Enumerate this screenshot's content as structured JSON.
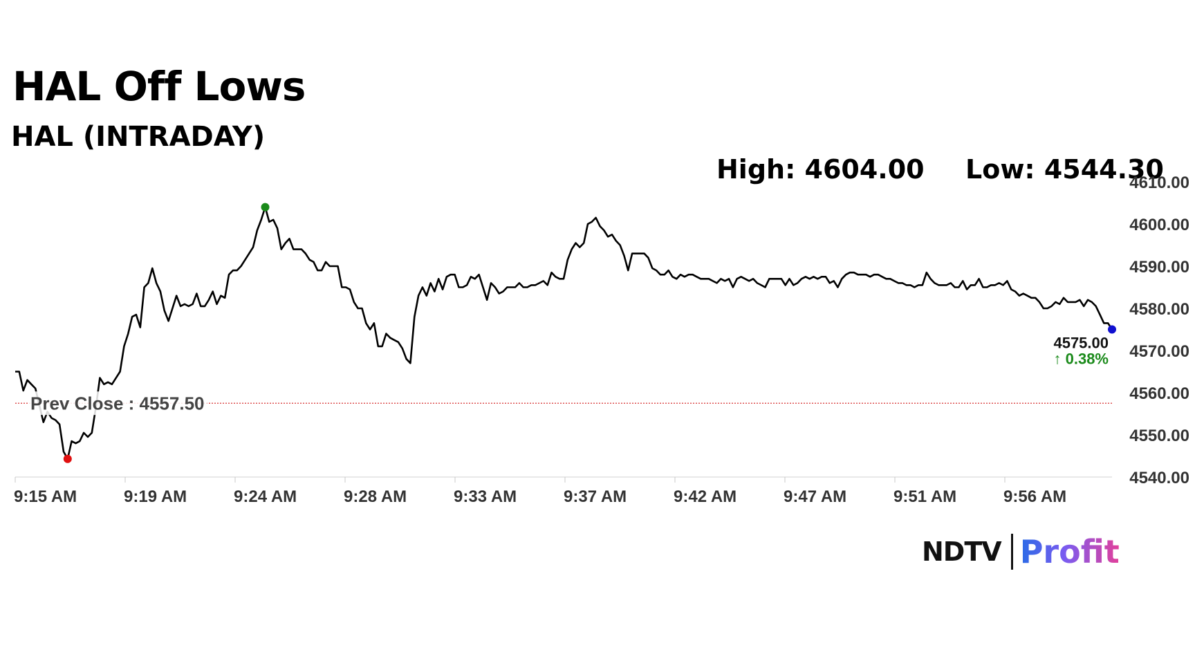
{
  "header": {
    "title": "HAL Off Lows",
    "subtitle": "HAL (INTRADAY)",
    "high_text": "High: 4604.00",
    "low_text": "Low: 4544.30"
  },
  "brand": {
    "ndtv": "NDTV",
    "profit": "Profit"
  },
  "chart_data": {
    "type": "line",
    "title": "HAL Off Lows",
    "subtitle": "HAL (INTRADAY)",
    "x_tick_labels": [
      "9:15 AM",
      "9:19 AM",
      "9:24 AM",
      "9:28 AM",
      "9:33 AM",
      "9:37 AM",
      "9:42 AM",
      "9:47 AM",
      "9:51 AM",
      "9:56 AM"
    ],
    "y_tick_labels": [
      "4540.00",
      "4550.00",
      "4560.00",
      "4570.00",
      "4580.00",
      "4590.00",
      "4600.00",
      "4610.00"
    ],
    "ylim": [
      4540,
      4610
    ],
    "grid": false,
    "prev_close": 4557.5,
    "prev_close_label": "Prev Close : 4557.50",
    "last_value_label": "4575.00",
    "change_label": "↑ 0.38%",
    "colors": {
      "line": "#000000",
      "high_marker": "#1a8a1a",
      "low_marker": "#e01010",
      "last_marker": "#1010d0",
      "prev_close": "#d83030",
      "change": "#1a8a1a"
    },
    "high": 4604.0,
    "low": 4544.3,
    "series": [
      {
        "values": [
          4565.0,
          4565.0,
          4560.5,
          4563.0,
          4562.0,
          4561.0,
          4557.0,
          4553.0,
          4555.5,
          4554.0,
          4553.5,
          4552.5,
          4546.0,
          4544.3,
          4548.5,
          4548.0,
          4548.5,
          4550.5,
          4549.5,
          4550.5,
          4556.5,
          4563.5,
          4562.0,
          4562.5,
          4562.0,
          4563.5,
          4565.0,
          4571.0,
          4574.0,
          4578.0,
          4578.5,
          4575.5,
          4585.0,
          4586.0,
          4589.5,
          4586.0,
          4584.0,
          4579.5,
          4577.0,
          4580.0,
          4583.0,
          4580.5,
          4581.0,
          4580.5,
          4581.0,
          4583.5,
          4580.5,
          4580.5,
          4582.0,
          4584.0,
          4581.0,
          4583.0,
          4582.5,
          4588.0,
          4589.0,
          4589.0,
          4590.0,
          4591.5,
          4593.0,
          4594.5,
          4598.5,
          4601.0,
          4604.0,
          4600.5,
          4601.0,
          4599.0,
          4594.0,
          4595.5,
          4596.5,
          4594.0,
          4594.0,
          4594.0,
          4593.0,
          4591.5,
          4591.0,
          4589.0,
          4589.0,
          4591.0,
          4590.0,
          4590.0,
          4590.0,
          4585.0,
          4585.0,
          4584.5,
          4581.5,
          4580.0,
          4580.0,
          4576.5,
          4575.0,
          4576.5,
          4571.0,
          4571.0,
          4574.0,
          4573.0,
          4572.5,
          4572.0,
          4570.5,
          4568.0,
          4567.0,
          4578.0,
          4583.0,
          4585.0,
          4583.0,
          4586.0,
          4584.0,
          4587.0,
          4584.5,
          4587.5,
          4588.0,
          4588.0,
          4585.0,
          4585.0,
          4585.5,
          4587.5,
          4587.0,
          4588.0,
          4585.0,
          4582.0,
          4586.0,
          4585.0,
          4583.5,
          4584.0,
          4585.0,
          4585.0,
          4585.0,
          4586.0,
          4585.0,
          4585.0,
          4585.5,
          4585.5,
          4586.0,
          4586.5,
          4585.5,
          4588.5,
          4587.5,
          4587.0,
          4587.0,
          4591.5,
          4594.0,
          4595.5,
          4594.5,
          4595.5,
          4600.0,
          4600.5,
          4601.5,
          4599.5,
          4598.5,
          4597.0,
          4597.5,
          4596.0,
          4595.0,
          4592.5,
          4589.0,
          4593.0,
          4593.0,
          4593.0,
          4593.0,
          4592.0,
          4589.5,
          4589.0,
          4588.0,
          4588.0,
          4589.0,
          4587.5,
          4587.0,
          4588.0,
          4587.5,
          4588.0,
          4588.0,
          4587.5,
          4587.0,
          4587.0,
          4587.0,
          4586.5,
          4586.0,
          4587.0,
          4586.5,
          4587.0,
          4585.0,
          4587.0,
          4587.5,
          4587.0,
          4586.5,
          4587.0,
          4586.0,
          4585.5,
          4585.0,
          4587.0,
          4587.0,
          4587.0,
          4587.0,
          4585.5,
          4587.0,
          4585.5,
          4586.0,
          4587.0,
          4587.5,
          4587.0,
          4587.5,
          4587.0,
          4587.5,
          4587.5,
          4586.0,
          4586.5,
          4585.0,
          4587.0,
          4588.0,
          4588.5,
          4588.5,
          4588.0,
          4588.0,
          4588.0,
          4587.5,
          4588.0,
          4588.0,
          4587.5,
          4587.0,
          4587.0,
          4586.5,
          4586.0,
          4586.0,
          4585.5,
          4585.5,
          4585.0,
          4585.5,
          4585.5,
          4588.5,
          4587.0,
          4586.0,
          4585.5,
          4585.5,
          4585.5,
          4586.0,
          4585.0,
          4585.0,
          4586.5,
          4584.5,
          4585.5,
          4585.5,
          4587.0,
          4585.0,
          4585.0,
          4585.5,
          4585.5,
          4586.0,
          4585.5,
          4586.5,
          4584.5,
          4584.0,
          4583.0,
          4583.5,
          4583.0,
          4582.5,
          4582.5,
          4581.5,
          4580.0,
          4580.0,
          4580.5,
          4581.5,
          4581.0,
          4582.5,
          4581.5,
          4581.5,
          4581.5,
          4582.0,
          4580.5,
          4582.0,
          4581.5,
          4580.5,
          4578.5,
          4576.5,
          4576.5,
          4575.0
        ]
      }
    ]
  }
}
